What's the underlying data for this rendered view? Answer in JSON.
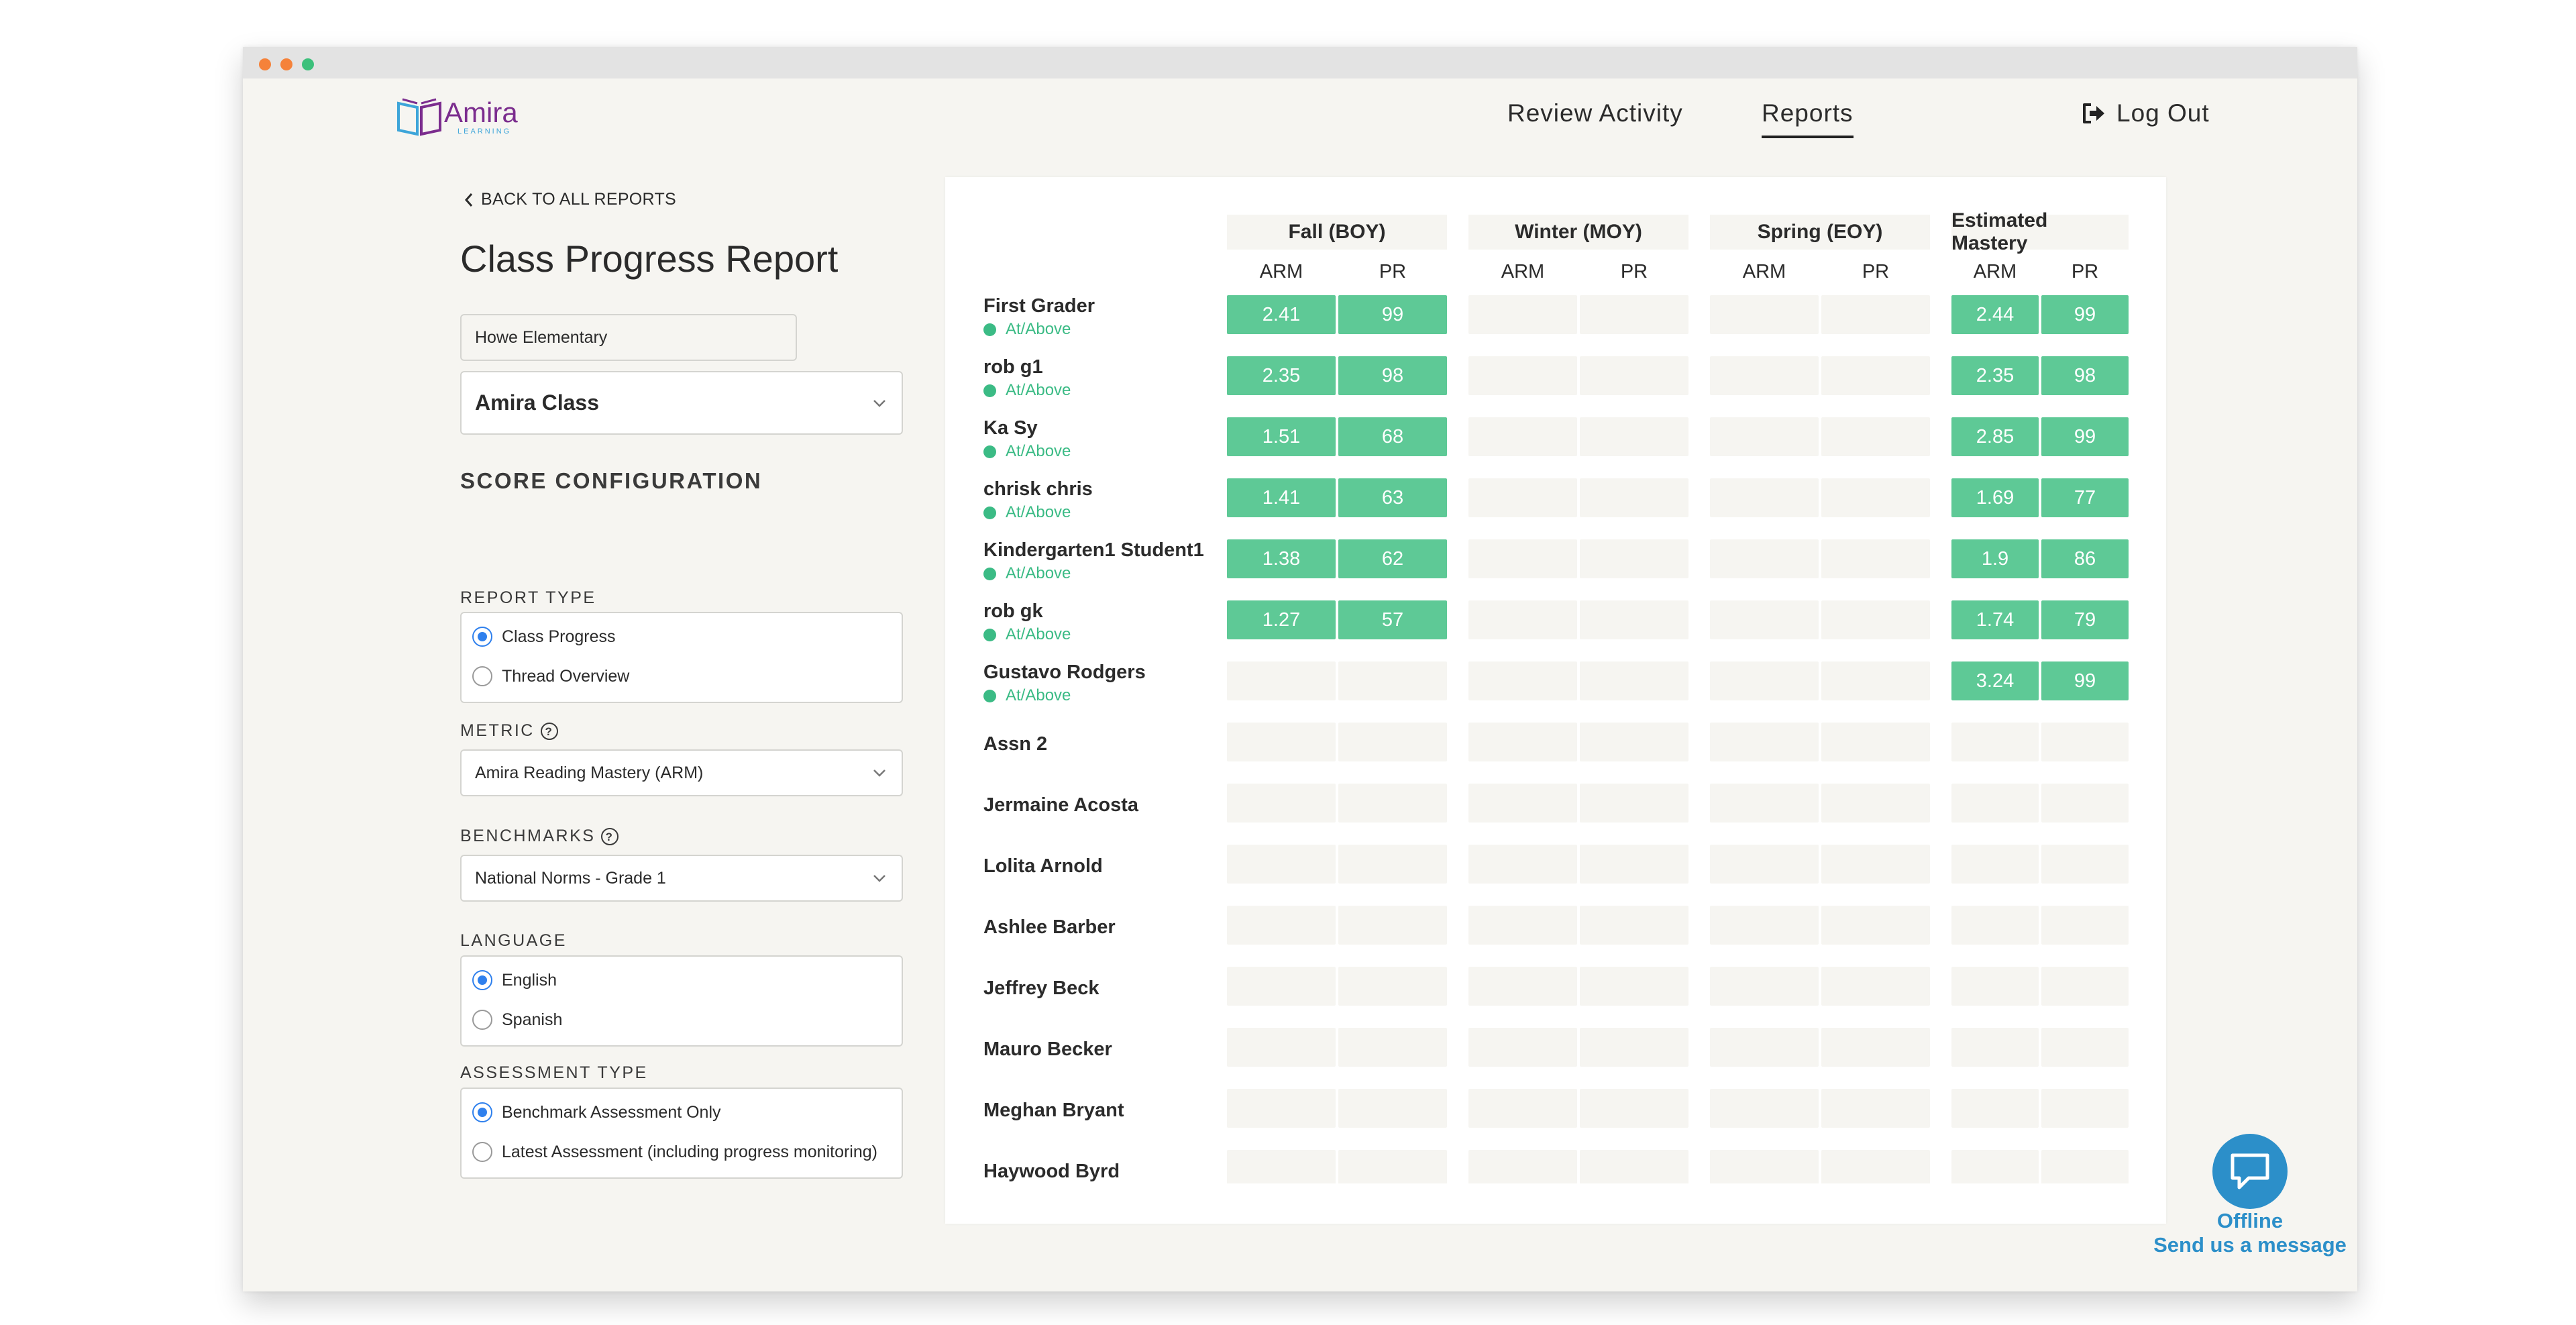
{
  "app": {
    "logo_text": "Amira",
    "logo_subtext": "LEARNING",
    "brand_purple": "#7b2d8e",
    "brand_blue": "#3da5d9"
  },
  "nav": {
    "review_activity": "Review Activity",
    "reports": "Reports",
    "logout": "Log Out",
    "active": "Reports"
  },
  "sidebar": {
    "back_label": "BACK TO ALL REPORTS",
    "title": "Class Progress Report",
    "school_value": "Howe Elementary",
    "class_value": "Amira Class",
    "score_config_heading": "SCORE CONFIGURATION",
    "report_type": {
      "label": "REPORT TYPE",
      "options": [
        "Class Progress",
        "Thread Overview"
      ],
      "selected": "Class Progress"
    },
    "metric": {
      "label": "METRIC",
      "value": "Amira Reading Mastery (ARM)"
    },
    "benchmarks": {
      "label": "BENCHMARKS",
      "value": "National Norms - Grade 1"
    },
    "language": {
      "label": "LANGUAGE",
      "options": [
        "English",
        "Spanish"
      ],
      "selected": "English"
    },
    "assessment_type": {
      "label": "ASSESSMENT TYPE",
      "options": [
        "Benchmark Assessment Only",
        "Latest Assessment (including progress monitoring)"
      ],
      "selected": "Benchmark Assessment Only"
    }
  },
  "report": {
    "periods": [
      "Fall (BOY)",
      "Winter (MOY)",
      "Spring (EOY)",
      "Estimated Mastery"
    ],
    "columns": [
      "ARM",
      "PR"
    ],
    "status_color": "#3bbb85",
    "filled_color": "#5ec996",
    "students": [
      {
        "name": "First Grader",
        "status": "At/Above",
        "boy": [
          "2.41",
          "99"
        ],
        "moy": [
          "",
          ""
        ],
        "eoy": [
          "",
          ""
        ],
        "est": [
          "2.44",
          "99"
        ]
      },
      {
        "name": "rob g1",
        "status": "At/Above",
        "boy": [
          "2.35",
          "98"
        ],
        "moy": [
          "",
          ""
        ],
        "eoy": [
          "",
          ""
        ],
        "est": [
          "2.35",
          "98"
        ]
      },
      {
        "name": "Ka Sy",
        "status": "At/Above",
        "boy": [
          "1.51",
          "68"
        ],
        "moy": [
          "",
          ""
        ],
        "eoy": [
          "",
          ""
        ],
        "est": [
          "2.85",
          "99"
        ]
      },
      {
        "name": "chrisk chris",
        "status": "At/Above",
        "boy": [
          "1.41",
          "63"
        ],
        "moy": [
          "",
          ""
        ],
        "eoy": [
          "",
          ""
        ],
        "est": [
          "1.69",
          "77"
        ]
      },
      {
        "name": "Kindergarten1 Student1",
        "status": "At/Above",
        "boy": [
          "1.38",
          "62"
        ],
        "moy": [
          "",
          ""
        ],
        "eoy": [
          "",
          ""
        ],
        "est": [
          "1.9",
          "86"
        ]
      },
      {
        "name": "rob gk",
        "status": "At/Above",
        "boy": [
          "1.27",
          "57"
        ],
        "moy": [
          "",
          ""
        ],
        "eoy": [
          "",
          ""
        ],
        "est": [
          "1.74",
          "79"
        ]
      },
      {
        "name": "Gustavo Rodgers",
        "status": "At/Above",
        "boy": [
          "",
          ""
        ],
        "moy": [
          "",
          ""
        ],
        "eoy": [
          "",
          ""
        ],
        "est": [
          "3.24",
          "99"
        ]
      },
      {
        "name": "Assn 2",
        "status": "",
        "boy": [
          "",
          ""
        ],
        "moy": [
          "",
          ""
        ],
        "eoy": [
          "",
          ""
        ],
        "est": [
          "",
          ""
        ]
      },
      {
        "name": "Jermaine Acosta",
        "status": "",
        "boy": [
          "",
          ""
        ],
        "moy": [
          "",
          ""
        ],
        "eoy": [
          "",
          ""
        ],
        "est": [
          "",
          ""
        ]
      },
      {
        "name": "Lolita Arnold",
        "status": "",
        "boy": [
          "",
          ""
        ],
        "moy": [
          "",
          ""
        ],
        "eoy": [
          "",
          ""
        ],
        "est": [
          "",
          ""
        ]
      },
      {
        "name": "Ashlee Barber",
        "status": "",
        "boy": [
          "",
          ""
        ],
        "moy": [
          "",
          ""
        ],
        "eoy": [
          "",
          ""
        ],
        "est": [
          "",
          ""
        ]
      },
      {
        "name": "Jeffrey Beck",
        "status": "",
        "boy": [
          "",
          ""
        ],
        "moy": [
          "",
          ""
        ],
        "eoy": [
          "",
          ""
        ],
        "est": [
          "",
          ""
        ]
      },
      {
        "name": "Mauro Becker",
        "status": "",
        "boy": [
          "",
          ""
        ],
        "moy": [
          "",
          ""
        ],
        "eoy": [
          "",
          ""
        ],
        "est": [
          "",
          ""
        ]
      },
      {
        "name": "Meghan Bryant",
        "status": "",
        "boy": [
          "",
          ""
        ],
        "moy": [
          "",
          ""
        ],
        "eoy": [
          "",
          ""
        ],
        "est": [
          "",
          ""
        ]
      },
      {
        "name": "Haywood Byrd",
        "status": "",
        "boy": [
          "",
          ""
        ],
        "moy": [
          "",
          ""
        ],
        "eoy": [
          "",
          ""
        ],
        "est": [
          "",
          ""
        ]
      }
    ]
  },
  "chat": {
    "status": "Offline",
    "action": "Send us a message",
    "color": "#2c8fc9"
  },
  "window_controls": {
    "close_color": "#f5823a",
    "minimize_color": "#f5823a",
    "zoom_color": "#3cc07b"
  }
}
